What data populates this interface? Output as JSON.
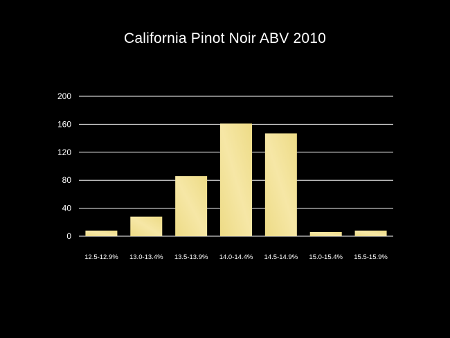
{
  "slide": {
    "background": "#000000"
  },
  "chart_data": {
    "type": "bar",
    "title": "California Pinot Noir ABV 2010",
    "xlabel": "",
    "ylabel": "",
    "categories": [
      "12.5-12.9%",
      "13.0-13.4%",
      "13.5-13.9%",
      "14.0-14.4%",
      "14.5-14.9%",
      "15.0-15.4%",
      "15.5-15.9%"
    ],
    "values": [
      8,
      28,
      86,
      161,
      147,
      6,
      8
    ],
    "ylim": [
      0,
      200
    ],
    "yticks": [
      "0",
      "40",
      "80",
      "120",
      "160",
      "200"
    ],
    "grid": true,
    "legend": "none",
    "colors": {
      "bar": "#f1df8e",
      "bar_highlight": "#f8ecb0",
      "gridline": "#ffffff",
      "text": "#ffffff"
    }
  }
}
